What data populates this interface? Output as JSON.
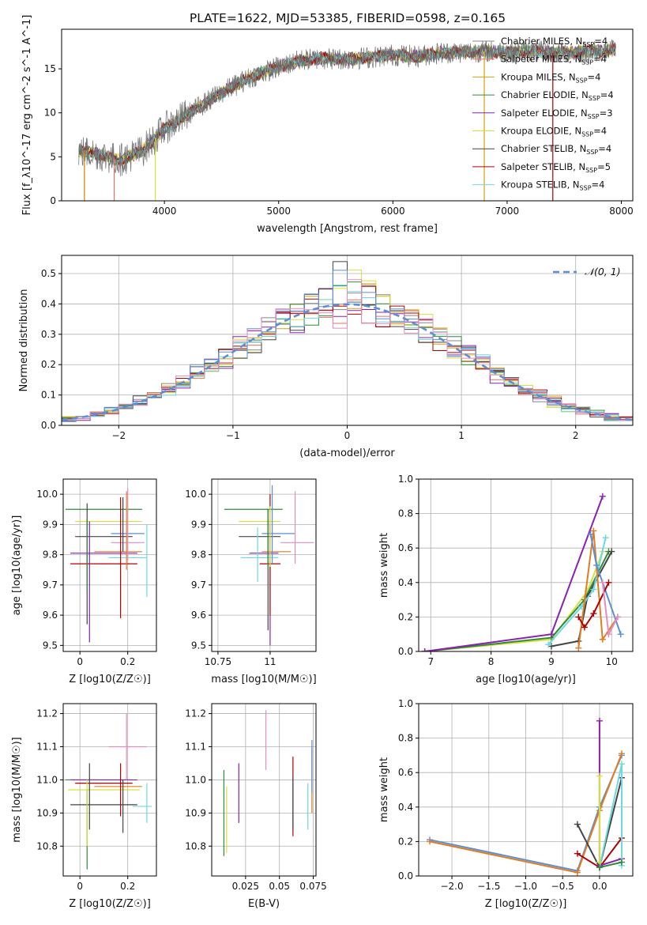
{
  "title": "PLATE=1622, MJD=53385, FIBERID=0598, z=0.165",
  "colors": [
    "#888888",
    "#e07060",
    "#d4a010",
    "#2e8b3a",
    "#8a20b0",
    "#d8e040",
    "#444444",
    "#b00000",
    "#70d8e0",
    "#5b8fd8",
    "#e48cc0",
    "#e07d20"
  ],
  "chart_data": [
    {
      "id": "spectrum",
      "type": "line",
      "xlabel": "wavelength [Angstrom, rest frame]",
      "ylabel": "Flux [f_λ10^-17 erg cm^-2 s^-1 A^-1]",
      "xlim": [
        3100,
        8100
      ],
      "ylim": [
        0,
        19.5
      ],
      "xticks": [
        4000,
        5000,
        6000,
        7000,
        8000
      ],
      "yticks": [
        0,
        5,
        10,
        15
      ],
      "legend_position": "upper right",
      "legend": [
        {
          "base": "Chabrier MILES, N",
          "sub": "SSP",
          "tail": "=4",
          "color": "#888888"
        },
        {
          "base": "Salpeter MILES, N",
          "sub": "SSP",
          "tail": "=4",
          "color": "#e07060"
        },
        {
          "base": "Kroupa MILES, N",
          "sub": "SSP",
          "tail": "=4",
          "color": "#d4a010"
        },
        {
          "base": "Chabrier ELODIE, N",
          "sub": "SSP",
          "tail": "=4",
          "color": "#2e8b3a"
        },
        {
          "base": "Salpeter ELODIE, N",
          "sub": "SSP",
          "tail": "=3",
          "color": "#8a20b0"
        },
        {
          "base": "Kroupa ELODIE, N",
          "sub": "SSP",
          "tail": "=4",
          "color": "#d8e040"
        },
        {
          "base": "Chabrier STELIB, N",
          "sub": "SSP",
          "tail": "=4",
          "color": "#444444"
        },
        {
          "base": "Salpeter STELIB, N",
          "sub": "SSP",
          "tail": "=5",
          "color": "#b00000"
        },
        {
          "base": "Kroupa STELIB, N",
          "sub": "SSP",
          "tail": "=4",
          "color": "#70d8e0"
        }
      ],
      "continuum": {
        "x": [
          3250,
          3400,
          3600,
          3800,
          4000,
          4200,
          4400,
          4600,
          4800,
          5000,
          5200,
          5400,
          5600,
          5800,
          6000,
          6200,
          6400,
          6600,
          6800,
          7000,
          7200,
          7400,
          7600,
          7800,
          7950
        ],
        "y": [
          5.6,
          5.4,
          4.6,
          5.6,
          8.2,
          9.8,
          11.5,
          13.0,
          14.3,
          15.2,
          16.0,
          16.2,
          16.1,
          16.3,
          16.6,
          16.4,
          16.8,
          16.9,
          17.0,
          16.9,
          17.0,
          16.8,
          16.9,
          17.0,
          17.1
        ]
      },
      "model_cutoffs": [
        {
          "color": "#e07060",
          "start": 3560,
          "end": 7990
        },
        {
          "color": "#d8e040",
          "start": 3920,
          "end": 8000
        },
        {
          "color": "#b00000",
          "start": 3300,
          "end": 7400
        },
        {
          "color": "#d4a010",
          "start": 3300,
          "end": 6800
        }
      ]
    },
    {
      "id": "residuals",
      "type": "step",
      "xlabel": "(data-model)/error",
      "ylabel": "Normed distribution",
      "xlim": [
        -2.5,
        2.5
      ],
      "ylim": [
        0,
        0.56
      ],
      "xticks": [
        -2,
        -1,
        0,
        1,
        2
      ],
      "yticks": [
        0.0,
        0.1,
        0.2,
        0.3,
        0.4,
        0.5
      ],
      "legend": "𝒩(0, 1)",
      "legend_color": "#5b8fd8",
      "bins": 40
    },
    {
      "id": "age_vs_Z",
      "type": "errorbar",
      "xlabel": "Z [log10(Z/Z☉)]",
      "ylabel": "age  [log10(age/yr)]",
      "xlim": [
        -0.07,
        0.32
      ],
      "ylim": [
        9.48,
        10.05
      ],
      "xticks": [
        0.0,
        0.2
      ],
      "yticks": [
        9.5,
        9.6,
        9.7,
        9.8,
        9.9,
        10.0
      ],
      "points": [
        {
          "c": "#2e8b3a",
          "x": 0.1,
          "y": 9.95,
          "xerr": 0.16,
          "yerr": 0
        },
        {
          "c": "#d8e040",
          "x": 0.12,
          "y": 9.91,
          "xerr": 0.14,
          "yerr": 0
        },
        {
          "c": "#444444",
          "x": 0.1,
          "y": 9.86,
          "xerr": 0.12,
          "yerr": 0
        },
        {
          "c": "#5b8fd8",
          "x": 0.2,
          "y": 9.87,
          "xerr": 0.07,
          "yerr": 0
        },
        {
          "c": "#e48cc0",
          "x": 0.2,
          "y": 9.84,
          "xerr": 0.07,
          "yerr": 0
        },
        {
          "c": "#e07d20",
          "x": 0.16,
          "y": 9.81,
          "xerr": 0.1,
          "yerr": 0
        },
        {
          "c": "#8a20b0",
          "x": 0.1,
          "y": 9.805,
          "xerr": 0.14,
          "yerr": 0
        },
        {
          "c": "#70d8e0",
          "x": 0.2,
          "y": 9.79,
          "xerr": 0.08,
          "yerr": 0
        },
        {
          "c": "#b00000",
          "x": 0.1,
          "y": 9.77,
          "xerr": 0.14,
          "yerr": 0
        },
        {
          "c": "#444444",
          "x": 0.03,
          "y": 9.77,
          "xerr": 0,
          "yerr": 0.2
        },
        {
          "c": "#8a20b0",
          "x": 0.04,
          "y": 9.71,
          "xerr": 0,
          "yerr": 0.2
        },
        {
          "c": "#2e8b3a",
          "x": 0.03,
          "y": 9.8,
          "xerr": 0,
          "yerr": 0.12
        },
        {
          "c": "#b00000",
          "x": 0.17,
          "y": 9.79,
          "xerr": 0,
          "yerr": 0.2
        },
        {
          "c": "#444444",
          "x": 0.18,
          "y": 9.9,
          "xerr": 0,
          "yerr": 0.09
        },
        {
          "c": "#e07d20",
          "x": 0.195,
          "y": 9.88,
          "xerr": 0,
          "yerr": 0.13
        },
        {
          "c": "#e48cc0",
          "x": 0.2,
          "y": 9.9,
          "xerr": 0,
          "yerr": 0.12
        },
        {
          "c": "#70d8e0",
          "x": 0.28,
          "y": 9.78,
          "xerr": 0,
          "yerr": 0.12
        }
      ]
    },
    {
      "id": "age_vs_mass",
      "type": "errorbar",
      "xlabel": "mass [log10(M/M☉)]",
      "ylabel": "",
      "xlim": [
        10.72,
        11.22
      ],
      "ylim": [
        9.48,
        10.05
      ],
      "xticks": [
        10.75,
        11.0
      ],
      "yticks": [
        9.5,
        9.6,
        9.7,
        9.8,
        9.9,
        10.0
      ],
      "points": [
        {
          "c": "#2e8b3a",
          "x": 10.92,
          "y": 9.95,
          "xerr": 0.14,
          "yerr": 0
        },
        {
          "c": "#d8e040",
          "x": 10.95,
          "y": 9.91,
          "xerr": 0.1,
          "yerr": 0
        },
        {
          "c": "#444444",
          "x": 10.95,
          "y": 9.86,
          "xerr": 0.1,
          "yerr": 0
        },
        {
          "c": "#5b8fd8",
          "x": 11.04,
          "y": 9.87,
          "xerr": 0.08,
          "yerr": 0
        },
        {
          "c": "#e48cc0",
          "x": 11.13,
          "y": 9.84,
          "xerr": 0.08,
          "yerr": 0
        },
        {
          "c": "#e07d20",
          "x": 11.03,
          "y": 9.81,
          "xerr": 0.07,
          "yerr": 0
        },
        {
          "c": "#8a20b0",
          "x": 10.97,
          "y": 9.805,
          "xerr": 0.07,
          "yerr": 0
        },
        {
          "c": "#70d8e0",
          "x": 10.95,
          "y": 9.79,
          "xerr": 0.09,
          "yerr": 0
        },
        {
          "c": "#b00000",
          "x": 11.0,
          "y": 9.77,
          "xerr": 0.05,
          "yerr": 0
        },
        {
          "c": "#444444",
          "x": 10.99,
          "y": 9.75,
          "xerr": 0,
          "yerr": 0.2
        },
        {
          "c": "#8a20b0",
          "x": 11.0,
          "y": 9.7,
          "xerr": 0,
          "yerr": 0.2
        },
        {
          "c": "#b00000",
          "x": 11.0,
          "y": 9.8,
          "xerr": 0,
          "yerr": 0.2
        },
        {
          "c": "#5b8fd8",
          "x": 11.01,
          "y": 9.9,
          "xerr": 0,
          "yerr": 0.13
        },
        {
          "c": "#d8e040",
          "x": 11.0,
          "y": 9.86,
          "xerr": 0,
          "yerr": 0.1
        },
        {
          "c": "#70d8e0",
          "x": 10.94,
          "y": 9.8,
          "xerr": 0,
          "yerr": 0.09
        },
        {
          "c": "#e48cc0",
          "x": 11.12,
          "y": 9.89,
          "xerr": 0,
          "yerr": 0.12
        },
        {
          "c": "#2e8b3a",
          "x": 10.99,
          "y": 9.85,
          "xerr": 0,
          "yerr": 0.1
        }
      ]
    },
    {
      "id": "weight_vs_age",
      "type": "line",
      "xlabel": "age  [log10(age/yr)]",
      "ylabel": "mass weight",
      "xlim": [
        6.8,
        10.35
      ],
      "ylim": [
        0,
        1
      ],
      "xticks": [
        7,
        8,
        9,
        10
      ],
      "yticks": [
        0.0,
        0.2,
        0.4,
        0.6,
        0.8,
        1.0
      ],
      "series": [
        {
          "c": "#d8e040",
          "x": [
            6.9,
            9.0,
            9.6,
            9.85
          ],
          "y": [
            0.0,
            0.07,
            0.35,
            0.58
          ]
        },
        {
          "c": "#2e8b3a",
          "x": [
            6.9,
            9.0,
            9.55,
            9.95
          ],
          "y": [
            0.0,
            0.08,
            0.3,
            0.58
          ]
        },
        {
          "c": "#8a20b0",
          "x": [
            6.9,
            9.0,
            9.85
          ],
          "y": [
            0.0,
            0.1,
            0.9
          ]
        },
        {
          "c": "#444444",
          "x": [
            9.0,
            9.45,
            9.6,
            10.0
          ],
          "y": [
            0.03,
            0.06,
            0.32,
            0.58
          ]
        },
        {
          "c": "#70d8e0",
          "x": [
            8.95,
            9.5,
            9.7,
            9.9
          ],
          "y": [
            0.04,
            0.26,
            0.36,
            0.66
          ]
        },
        {
          "c": "#e07d20",
          "x": [
            9.45,
            9.7,
            9.85,
            10.1
          ],
          "y": [
            0.02,
            0.7,
            0.07,
            0.2
          ]
        },
        {
          "c": "#5b8fd8",
          "x": [
            9.65,
            9.75,
            10.15
          ],
          "y": [
            0.68,
            0.5,
            0.1
          ]
        },
        {
          "c": "#b00000",
          "x": [
            9.45,
            9.55,
            9.7,
            9.95
          ],
          "y": [
            0.2,
            0.14,
            0.22,
            0.4
          ]
        },
        {
          "c": "#e48cc0",
          "x": [
            9.85,
            9.95,
            10.1
          ],
          "y": [
            0.4,
            0.1,
            0.2
          ]
        }
      ]
    },
    {
      "id": "mass_vs_Z",
      "type": "errorbar",
      "xlabel": "Z [log10(Z/Z☉)]",
      "ylabel": "mass [log10(M/M☉)]",
      "xlim": [
        -0.07,
        0.32
      ],
      "ylim": [
        10.71,
        11.23
      ],
      "xticks": [
        0.0,
        0.2
      ],
      "yticks": [
        10.8,
        10.9,
        11.0,
        11.1,
        11.2
      ],
      "points": [
        {
          "c": "#e48cc0",
          "x": 0.2,
          "y": 11.1,
          "xerr": 0.08,
          "yerr": 0
        },
        {
          "c": "#2e8b3a",
          "x": 0.08,
          "y": 11.0,
          "xerr": 0.14,
          "yerr": 0
        },
        {
          "c": "#8a20b0",
          "x": 0.1,
          "y": 11.0,
          "xerr": 0.14,
          "yerr": 0
        },
        {
          "c": "#b00000",
          "x": 0.1,
          "y": 10.99,
          "xerr": 0.12,
          "yerr": 0
        },
        {
          "c": "#e07d20",
          "x": 0.16,
          "y": 10.98,
          "xerr": 0.1,
          "yerr": 0
        },
        {
          "c": "#d8e040",
          "x": 0.1,
          "y": 10.97,
          "xerr": 0.15,
          "yerr": 0
        },
        {
          "c": "#444444",
          "x": 0.1,
          "y": 10.925,
          "xerr": 0.14,
          "yerr": 0
        },
        {
          "c": "#70d8e0",
          "x": 0.26,
          "y": 10.92,
          "xerr": 0.04,
          "yerr": 0
        },
        {
          "c": "#2e8b3a",
          "x": 0.03,
          "y": 10.85,
          "xerr": 0,
          "yerr": 0.12
        },
        {
          "c": "#444444",
          "x": 0.04,
          "y": 10.95,
          "xerr": 0,
          "yerr": 0.1
        },
        {
          "c": "#d8e040",
          "x": 0.03,
          "y": 10.9,
          "xerr": 0,
          "yerr": 0.1
        },
        {
          "c": "#b00000",
          "x": 0.17,
          "y": 10.97,
          "xerr": 0,
          "yerr": 0.08
        },
        {
          "c": "#444444",
          "x": 0.18,
          "y": 10.92,
          "xerr": 0,
          "yerr": 0.08
        },
        {
          "c": "#e48cc0",
          "x": 0.195,
          "y": 11.1,
          "xerr": 0,
          "yerr": 0.1
        },
        {
          "c": "#70d8e0",
          "x": 0.28,
          "y": 10.93,
          "xerr": 0,
          "yerr": 0.06
        }
      ]
    },
    {
      "id": "mass_vs_ebv",
      "type": "errorbar",
      "xlabel": "E(B-V)",
      "ylabel": "",
      "xlim": [
        0.0,
        0.077
      ],
      "ylim": [
        10.71,
        11.23
      ],
      "xticks": [
        0.025,
        0.05,
        0.075
      ],
      "yticks": [
        10.8,
        10.9,
        11.0,
        11.1,
        11.2
      ],
      "points": [
        {
          "c": "#2e8b3a",
          "x": 0.009,
          "y": 10.9,
          "xerr": 0,
          "yerr": 0.13
        },
        {
          "c": "#d8e040",
          "x": 0.011,
          "y": 10.88,
          "xerr": 0,
          "yerr": 0.1
        },
        {
          "c": "#8a20b0",
          "x": 0.02,
          "y": 10.96,
          "xerr": 0,
          "yerr": 0.09
        },
        {
          "c": "#e48cc0",
          "x": 0.04,
          "y": 11.12,
          "xerr": 0,
          "yerr": 0.09
        },
        {
          "c": "#b00000",
          "x": 0.06,
          "y": 10.95,
          "xerr": 0,
          "yerr": 0.12
        },
        {
          "c": "#444444",
          "x": 0.06,
          "y": 10.93,
          "xerr": 0,
          "yerr": 0.08
        },
        {
          "c": "#70d8e0",
          "x": 0.071,
          "y": 10.92,
          "xerr": 0,
          "yerr": 0.07
        },
        {
          "c": "#e07d20",
          "x": 0.074,
          "y": 11.0,
          "xerr": 0,
          "yerr": 0.1
        },
        {
          "c": "#5b8fd8",
          "x": 0.074,
          "y": 11.04,
          "xerr": 0,
          "yerr": 0.08
        }
      ]
    },
    {
      "id": "weight_vs_Z",
      "type": "line",
      "xlabel": "Z [log10(Z/Z☉)]",
      "ylabel": "mass weight",
      "xlim": [
        -2.45,
        0.45
      ],
      "ylim": [
        0,
        1
      ],
      "xticks": [
        -2.0,
        -1.5,
        -1.0,
        -0.5,
        0.0
      ],
      "yticks": [
        0.0,
        0.2,
        0.4,
        0.6,
        0.8,
        1.0
      ],
      "xtick_labels": [
        "−2.0",
        "−1.5",
        "−1.0",
        "−0.5",
        "0.0"
      ],
      "series": [
        {
          "c": "#5b8fd8",
          "x": [
            -2.3,
            -0.3,
            0.0,
            0.3
          ],
          "y": [
            0.21,
            0.03,
            0.4,
            0.7
          ]
        },
        {
          "c": "#e07d20",
          "x": [
            -2.3,
            -0.3,
            0.0,
            0.3
          ],
          "y": [
            0.2,
            0.02,
            0.38,
            0.71
          ]
        },
        {
          "c": "#444444",
          "x": [
            -0.3,
            0.0,
            0.3
          ],
          "y": [
            0.3,
            0.05,
            0.57
          ]
        },
        {
          "c": "#b00000",
          "x": [
            -0.3,
            0.0,
            0.3
          ],
          "y": [
            0.13,
            0.05,
            0.22
          ]
        },
        {
          "c": "#8a20b0",
          "x": [
            0.0,
            0.0,
            0.3
          ],
          "y": [
            0.9,
            0.06,
            0.1
          ]
        },
        {
          "c": "#70d8e0",
          "x": [
            0.0,
            0.3,
            0.3
          ],
          "y": [
            0.05,
            0.65,
            0.06
          ]
        },
        {
          "c": "#d8e040",
          "x": [
            0.0,
            0.0
          ],
          "y": [
            0.08,
            0.58
          ]
        },
        {
          "c": "#2e8b3a",
          "x": [
            0.0,
            0.3
          ],
          "y": [
            0.05,
            0.08
          ]
        }
      ]
    }
  ]
}
